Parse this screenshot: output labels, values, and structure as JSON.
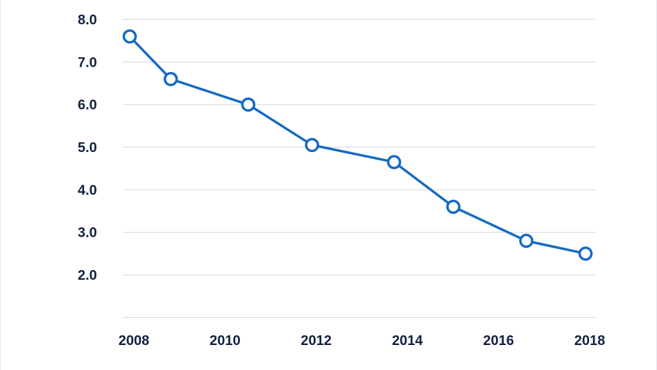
{
  "chart_data": {
    "type": "line",
    "title": "",
    "xlabel": "",
    "ylabel": "",
    "x_ticks": [
      "2008",
      "2010",
      "2012",
      "2014",
      "2016",
      "2018"
    ],
    "y_ticks": [
      "8.0",
      "7.0",
      "6.0",
      "5.0",
      "4.0",
      "3.0",
      "2.0"
    ],
    "xlim": [
      2008,
      2018
    ],
    "ylim": [
      1.0,
      8.0
    ],
    "grid": true,
    "series": [
      {
        "x": [
          2008,
          2008.9,
          2010.6,
          2012,
          2013.8,
          2015.1,
          2016.7,
          2018
        ],
        "values": [
          7.6,
          6.6,
          6.0,
          5.05,
          4.65,
          3.6,
          2.8,
          2.5
        ]
      }
    ],
    "colors": {
      "line": "#1669c4",
      "grid": "#d9dce3",
      "text": "#12213f"
    }
  }
}
